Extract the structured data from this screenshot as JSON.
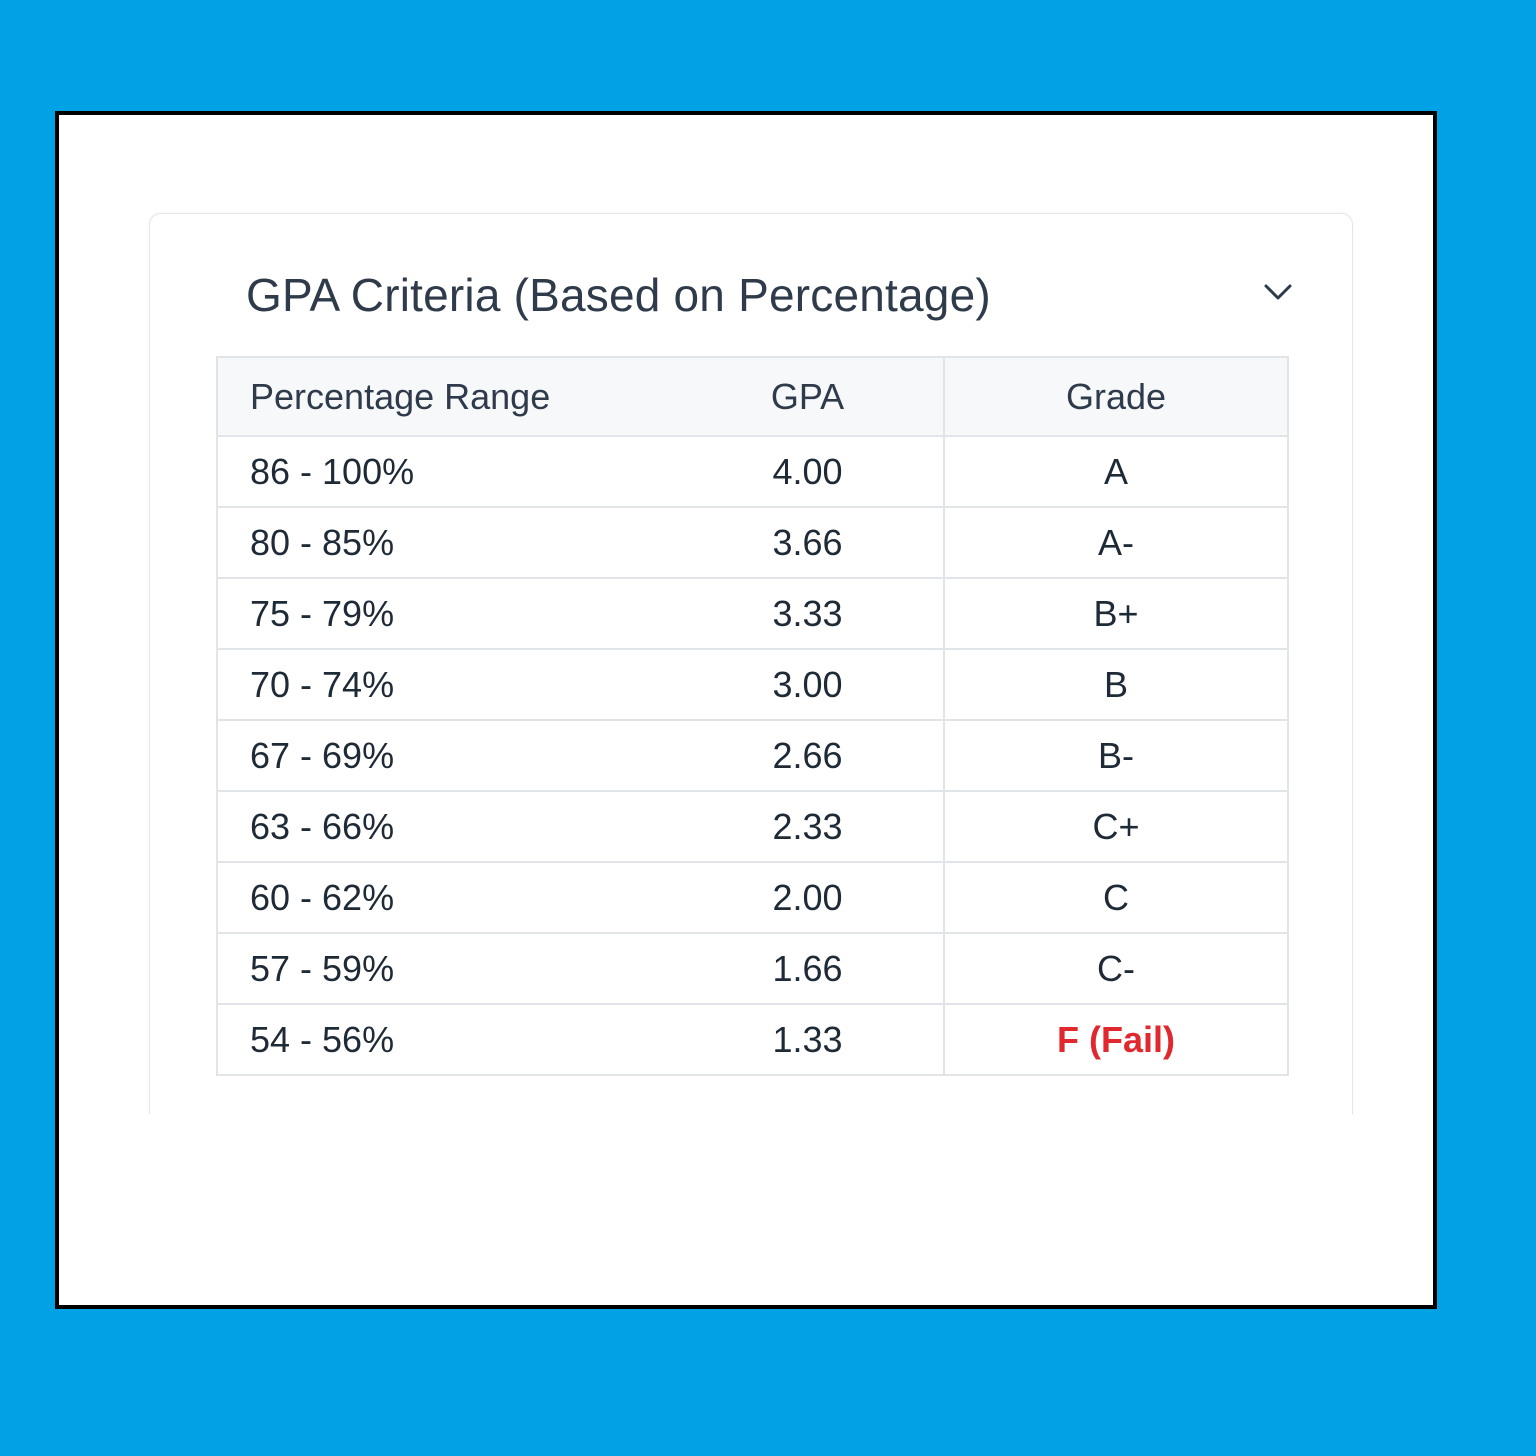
{
  "card": {
    "title": "GPA Criteria (Based on Percentage)",
    "toggle_icon": "chevron-down-icon"
  },
  "colors": {
    "background": "#00a2e6",
    "frame_border": "#000000",
    "title_text": "#2f3b4a",
    "fail_text": "#e0282e",
    "header_bg": "#f6f8fa"
  },
  "table": {
    "headers": [
      "Percentage Range",
      "GPA",
      "Grade"
    ],
    "rows": [
      {
        "range": "86 - 100%",
        "gpa": "4.00",
        "grade": "A",
        "fail": false
      },
      {
        "range": "80 - 85%",
        "gpa": "3.66",
        "grade": "A-",
        "fail": false
      },
      {
        "range": "75 - 79%",
        "gpa": "3.33",
        "grade": "B+",
        "fail": false
      },
      {
        "range": "70 - 74%",
        "gpa": "3.00",
        "grade": "B",
        "fail": false
      },
      {
        "range": "67 - 69%",
        "gpa": "2.66",
        "grade": "B-",
        "fail": false
      },
      {
        "range": "63 - 66%",
        "gpa": "2.33",
        "grade": "C+",
        "fail": false
      },
      {
        "range": "60 - 62%",
        "gpa": "2.00",
        "grade": "C",
        "fail": false
      },
      {
        "range": "57 - 59%",
        "gpa": "1.66",
        "grade": "C-",
        "fail": false
      },
      {
        "range": "54 - 56%",
        "gpa": "1.33",
        "grade": "F (Fail)",
        "fail": true
      }
    ]
  }
}
